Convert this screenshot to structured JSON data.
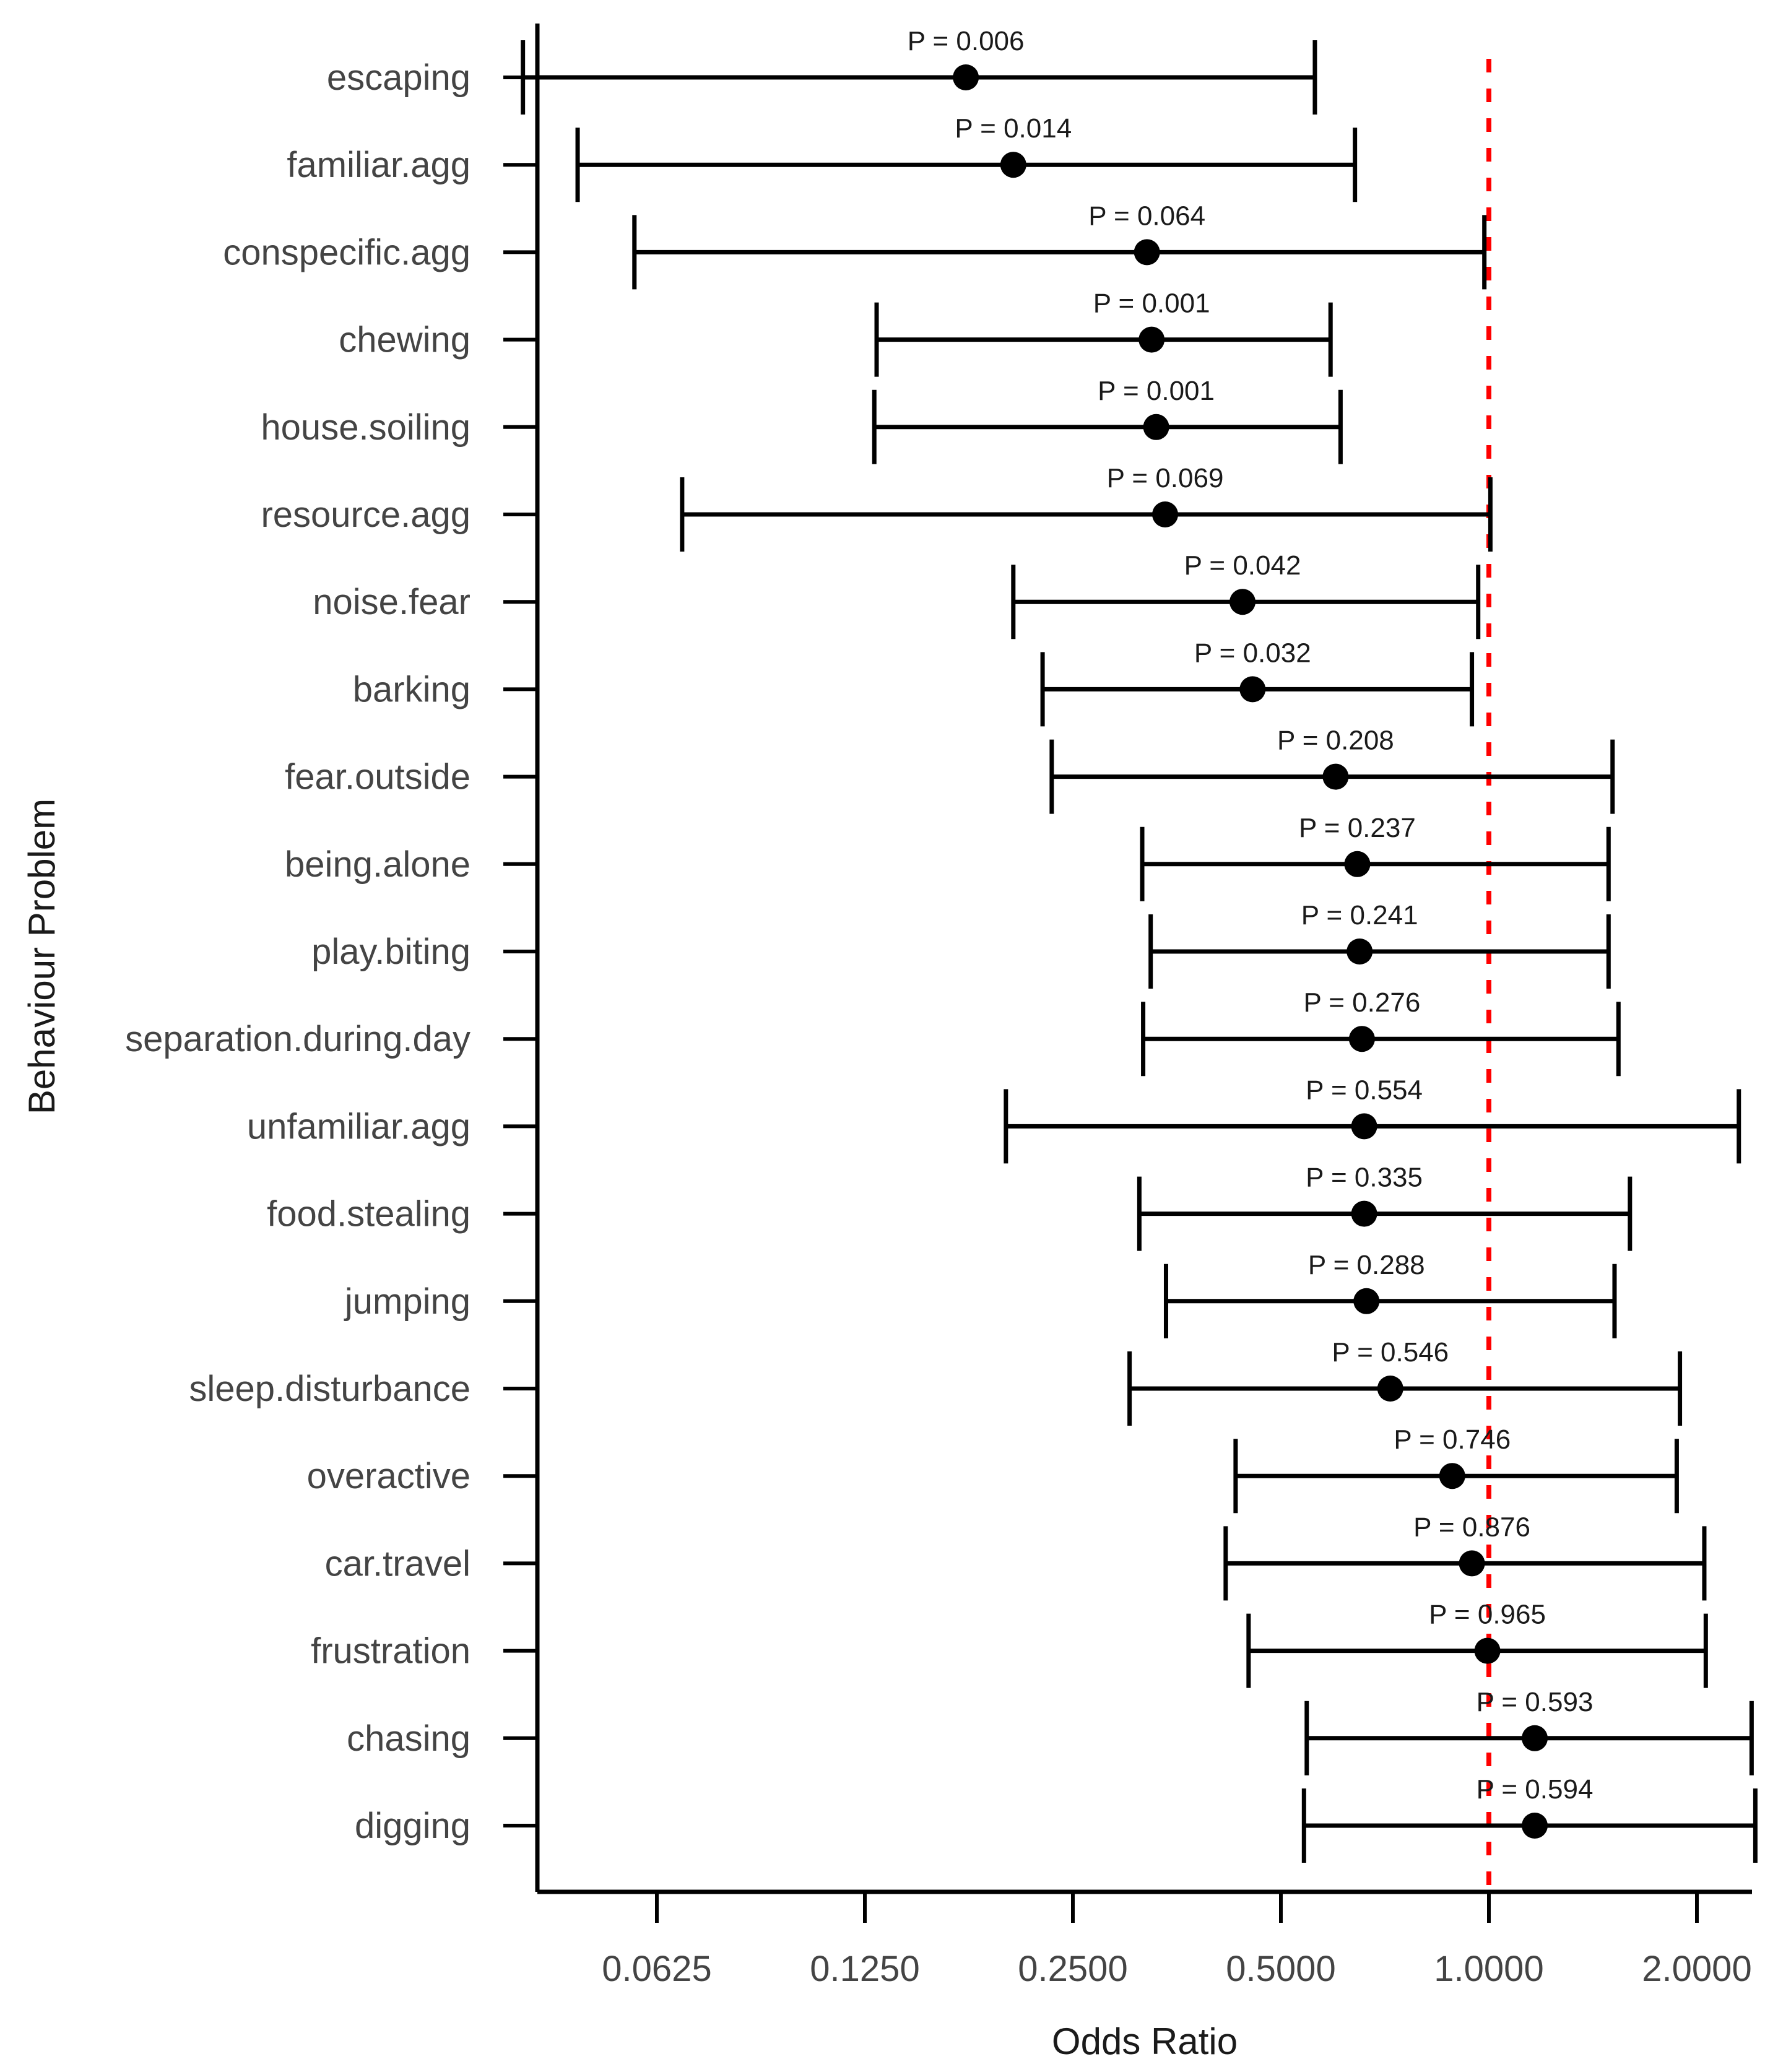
{
  "chart_data": {
    "type": "forest",
    "xlabel": "Odds Ratio",
    "ylabel": "Behaviour Problem",
    "x_scale": "log2",
    "xlim": [
      0.037,
      2.55
    ],
    "xticks": [
      0.0625,
      0.125,
      0.25,
      0.5,
      1,
      2
    ],
    "xtick_labels": [
      "0.0625",
      "0.1250",
      "0.2500",
      "0.5000",
      "1.0000",
      "2.0000"
    ],
    "reference_line": 1,
    "reference_color": "#ff0000",
    "p_prefix": "P = ",
    "rows": [
      {
        "label": "escaping",
        "or": 0.175,
        "lo": 0.04,
        "hi": 0.56,
        "p": "0.006"
      },
      {
        "label": "familiar.agg",
        "or": 0.205,
        "lo": 0.048,
        "hi": 0.64,
        "p": "0.014"
      },
      {
        "label": "conspecific.agg",
        "or": 0.32,
        "lo": 0.058,
        "hi": 0.985,
        "p": "0.064"
      },
      {
        "label": "chewing",
        "or": 0.325,
        "lo": 0.13,
        "hi": 0.59,
        "p": "0.001"
      },
      {
        "label": "house.soiling",
        "or": 0.33,
        "lo": 0.129,
        "hi": 0.61,
        "p": "0.001"
      },
      {
        "label": "resource.agg",
        "or": 0.34,
        "lo": 0.068,
        "hi": 1.005,
        "p": "0.069"
      },
      {
        "label": "noise.fear",
        "or": 0.44,
        "lo": 0.205,
        "hi": 0.965,
        "p": "0.042"
      },
      {
        "label": "barking",
        "or": 0.455,
        "lo": 0.226,
        "hi": 0.945,
        "p": "0.032"
      },
      {
        "label": "fear.outside",
        "or": 0.6,
        "lo": 0.233,
        "hi": 1.51,
        "p": "0.208"
      },
      {
        "label": "being.alone",
        "or": 0.645,
        "lo": 0.315,
        "hi": 1.49,
        "p": "0.237"
      },
      {
        "label": "play.biting",
        "or": 0.65,
        "lo": 0.324,
        "hi": 1.49,
        "p": "0.241"
      },
      {
        "label": "separation.during.day",
        "or": 0.655,
        "lo": 0.316,
        "hi": 1.54,
        "p": "0.276"
      },
      {
        "label": "unfamiliar.agg",
        "or": 0.66,
        "lo": 0.2,
        "hi": 2.3,
        "p": "0.554"
      },
      {
        "label": "food.stealing",
        "or": 0.66,
        "lo": 0.312,
        "hi": 1.6,
        "p": "0.335"
      },
      {
        "label": "jumping",
        "or": 0.665,
        "lo": 0.341,
        "hi": 1.52,
        "p": "0.288"
      },
      {
        "label": "sleep.disturbance",
        "or": 0.72,
        "lo": 0.302,
        "hi": 1.89,
        "p": "0.546"
      },
      {
        "label": "overactive",
        "or": 0.885,
        "lo": 0.43,
        "hi": 1.87,
        "p": "0.746"
      },
      {
        "label": "car.travel",
        "or": 0.945,
        "lo": 0.416,
        "hi": 2.05,
        "p": "0.876"
      },
      {
        "label": "frustration",
        "or": 0.995,
        "lo": 0.449,
        "hi": 2.06,
        "p": "0.965"
      },
      {
        "label": "chasing",
        "or": 1.165,
        "lo": 0.545,
        "hi": 2.4,
        "p": "0.593"
      },
      {
        "label": "digging",
        "or": 1.165,
        "lo": 0.54,
        "hi": 2.43,
        "p": "0.594"
      }
    ]
  }
}
